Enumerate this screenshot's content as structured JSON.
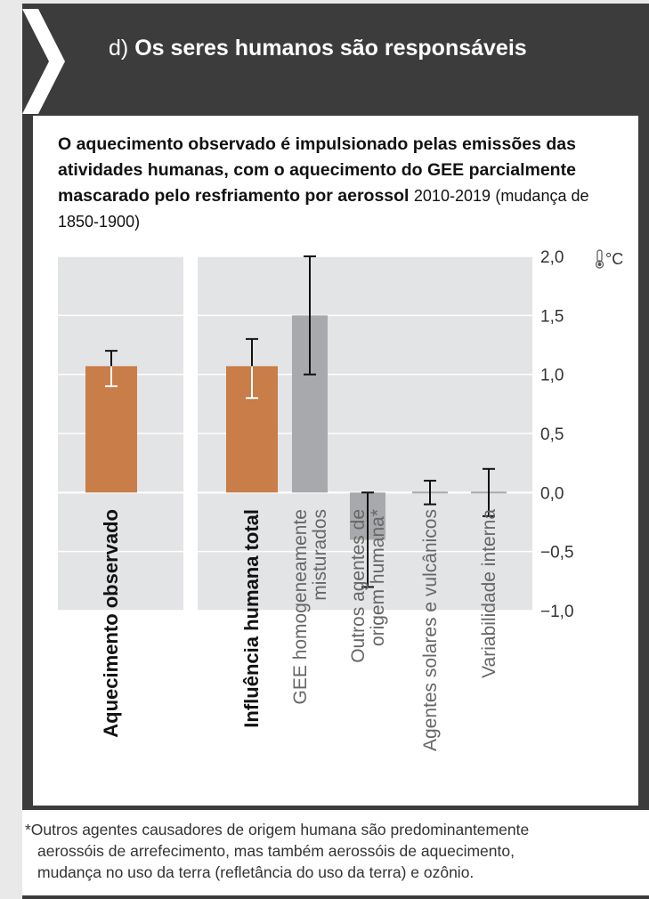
{
  "header": {
    "letter": "d)",
    "title": "Os seres humanos são responsáveis"
  },
  "intro": {
    "bold": "O aquecimento observado é impulsionado pelas emissões das atividades humanas, com o aquecimento do GEE parcialmente mascarado pelo resfriamento por aerossol",
    "period": "2010-2019",
    "note": "(mudança de 1850-1900)"
  },
  "chart_data": {
    "type": "bar",
    "unit": "°C",
    "unit_icon": "thermometer-icon",
    "ylim": [
      -1.0,
      2.0
    ],
    "yticks": [
      "2,0",
      "1,5",
      "1,0",
      "0,5",
      "0,0",
      "−0,5",
      "−1,0"
    ],
    "ytick_values": [
      2.0,
      1.5,
      1.0,
      0.5,
      0.0,
      -0.5,
      -1.0
    ],
    "categories": [
      {
        "label": "Aquecimento observado",
        "lines": [
          "Aquecimento observado"
        ],
        "bold": true,
        "value": 1.07,
        "err_low": 0.9,
        "err_high": 1.2,
        "color": "#c97d48",
        "err_color": "#ffffff"
      },
      {
        "label": "Influência humana total",
        "lines": [
          "Influência humana total"
        ],
        "bold": true,
        "value": 1.07,
        "err_low": 0.8,
        "err_high": 1.3,
        "color": "#c97d48",
        "err_color": "#ffffff"
      },
      {
        "label": "GEE homogeneamente misturados",
        "lines": [
          "GEE homogeneamente",
          "misturados"
        ],
        "bold": false,
        "value": 1.5,
        "err_low": 1.0,
        "err_high": 2.0,
        "color": "#a7a9ac",
        "err_color": "#111111"
      },
      {
        "label": "Outros agentes de origem humana*",
        "lines": [
          "Outros agentes de",
          "origem humana*"
        ],
        "bold": false,
        "value": -0.4,
        "err_low": -0.8,
        "err_high": 0.0,
        "color": "#a7a9ac",
        "err_color": "#111111"
      },
      {
        "label": "Agentes solares e vulcânicos",
        "lines": [
          "Agentes solares e vulcânicos"
        ],
        "bold": false,
        "value": 0.0,
        "err_low": -0.1,
        "err_high": 0.1,
        "color": "#a7a9ac",
        "err_color": "#111111"
      },
      {
        "label": "Variabilidade interna",
        "lines": [
          "Variabilidade interna"
        ],
        "bold": false,
        "value": 0.0,
        "err_low": -0.2,
        "err_high": 0.2,
        "color": "#a7a9ac",
        "err_color": "#111111"
      }
    ]
  },
  "footnote": {
    "lines": [
      "*Outros agentes causadores de origem humana são predominantemente",
      "aerossóis de arrefecimento, mas também aerossóis de aquecimento,",
      "mudança no uso da terra (refletância do uso da terra) e ozônio."
    ]
  },
  "colors": {
    "header_bg": "#3c3c3c",
    "observed": "#c97d48",
    "components": "#a7a9ac"
  }
}
